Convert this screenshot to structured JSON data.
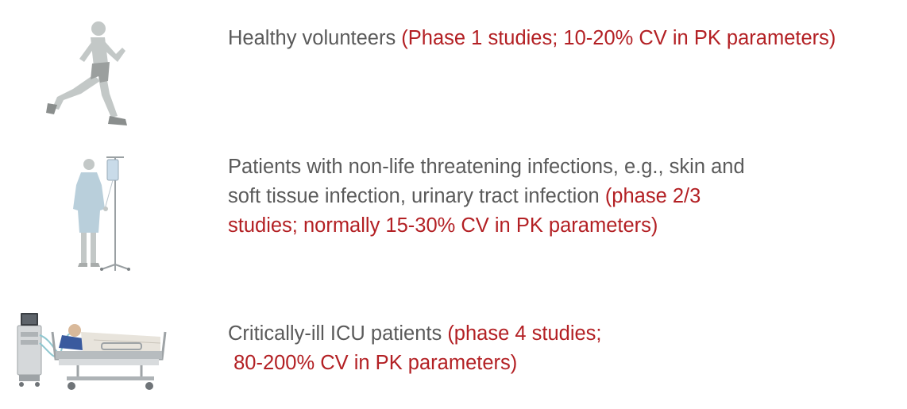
{
  "colors": {
    "gray_text": "#5a5a5a",
    "red_text": "#b32024"
  },
  "rows": [
    {
      "icon": "runner-icon",
      "lines": [
        {
          "gray": "Healthy volunteers ",
          "red": "(Phase 1 studies; 10-20% CV in PK parameters)"
        }
      ]
    },
    {
      "icon": "patient-iv-stand-icon",
      "lines": [
        {
          "gray": "Patients with non-life threatening infections, e.g., skin and",
          "red": ""
        },
        {
          "gray": "soft tissue infection, urinary tract infection ",
          "red": "(phase 2/3"
        },
        {
          "gray": "",
          "red": "studies; normally 15-30% CV in PK parameters)"
        }
      ]
    },
    {
      "icon": "icu-bed-ventilator-icon",
      "lines": [
        {
          "gray": "Critically-ill ICU patients ",
          "red": "(phase 4 studies;"
        },
        {
          "gray": "",
          "red": " 80-200% CV in PK parameters)"
        }
      ]
    }
  ]
}
